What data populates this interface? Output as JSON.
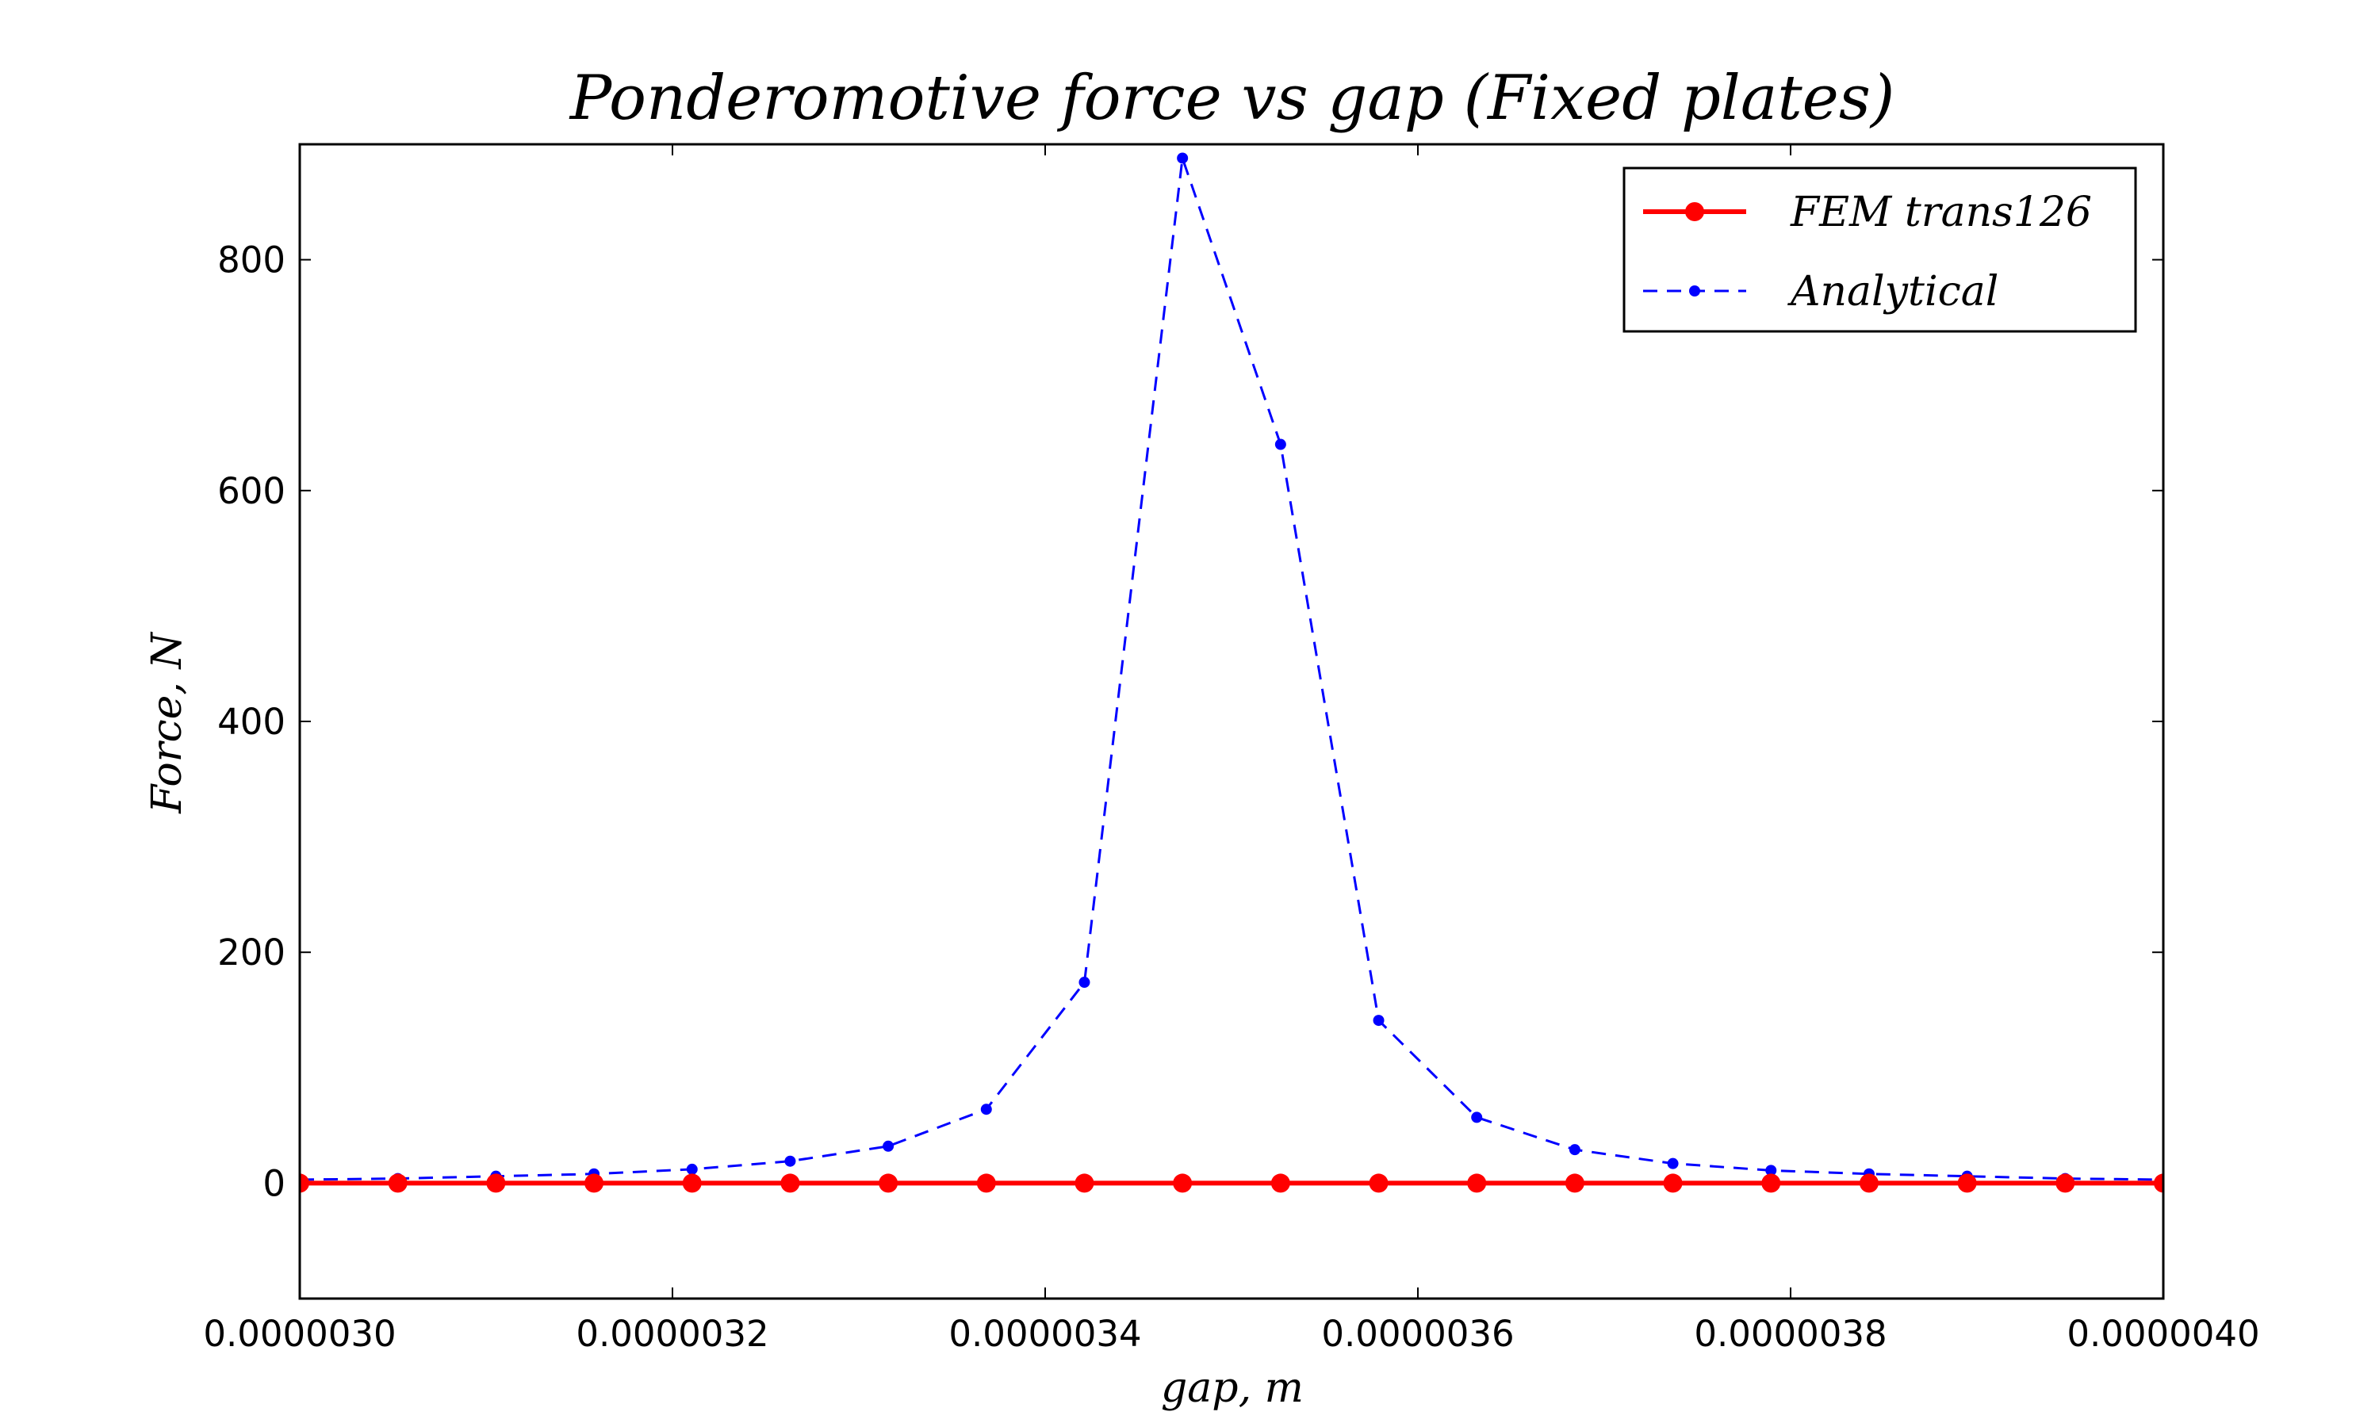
{
  "chart_data": {
    "type": "line",
    "title": "Ponderomotive force vs gap (Fixed plates)",
    "xlabel": "gap, m",
    "ylabel": "Force, N",
    "xlim": [
      3e-06,
      4e-06
    ],
    "ylim": [
      -100,
      900
    ],
    "x_ticks": [
      3e-06,
      3.2e-06,
      3.4e-06,
      3.6e-06,
      3.8e-06,
      4e-06
    ],
    "x_tick_labels": [
      "0.0000030",
      "0.0000032",
      "0.0000034",
      "0.0000036",
      "0.0000038",
      "0.0000040"
    ],
    "y_ticks": [
      0,
      200,
      400,
      600,
      800
    ],
    "y_tick_labels": [
      "0",
      "200",
      "400",
      "600",
      "800"
    ],
    "grid": false,
    "legend_position": "top-right",
    "x": [
      3e-06,
      3.05263e-06,
      3.10526e-06,
      3.15789e-06,
      3.21053e-06,
      3.26316e-06,
      3.31579e-06,
      3.36842e-06,
      3.42105e-06,
      3.47368e-06,
      3.52632e-06,
      3.57895e-06,
      3.63158e-06,
      3.68421e-06,
      3.73684e-06,
      3.78947e-06,
      3.84211e-06,
      3.89474e-06,
      3.94737e-06,
      4e-06
    ],
    "series": [
      {
        "name": "FEM trans126",
        "color": "#ff0000",
        "style": "solid",
        "marker": "circle",
        "values": [
          0,
          0,
          0,
          0,
          0,
          0,
          0,
          0,
          0,
          0,
          0,
          0,
          0,
          0,
          0,
          0,
          0,
          0,
          0,
          0
        ]
      },
      {
        "name": "Analytical",
        "color": "#0000ff",
        "style": "dashed",
        "marker": "dot",
        "values": [
          3,
          4,
          6,
          8,
          12,
          19,
          32,
          64,
          174,
          888,
          640,
          141,
          57,
          29,
          17,
          11,
          8,
          6,
          4,
          3
        ]
      }
    ]
  }
}
